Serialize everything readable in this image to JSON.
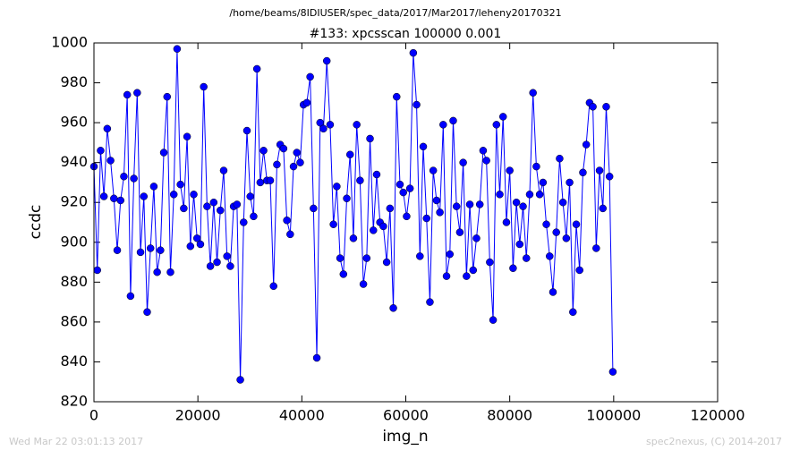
{
  "chart_data": {
    "type": "line",
    "suptitle": "/home/beams/8IDIUSER/spec_data/2017/Mar2017/leheny20170321",
    "title": "#133: xpcsscan 100000 0.001",
    "x_label": "img_n",
    "y_label": "ccdc",
    "footer_left": "Wed Mar 22 03:01:13 2017",
    "footer_right": "spec2nexus, (C) 2014-2017",
    "xlim": [
      0,
      120000
    ],
    "xticks": [
      0,
      20000,
      40000,
      60000,
      80000,
      100000,
      120000
    ],
    "ylim": [
      820,
      1000
    ],
    "yticks": [
      820,
      840,
      860,
      880,
      900,
      920,
      940,
      960,
      980,
      1000
    ],
    "grid": false,
    "series": [
      {
        "name": "ccdc",
        "color": "#0000ff",
        "x": [
          0,
          640,
          1280,
          1920,
          2560,
          3200,
          3840,
          4480,
          5120,
          5760,
          6400,
          7040,
          7680,
          8320,
          8960,
          9600,
          10240,
          10880,
          11520,
          12160,
          12800,
          13440,
          14080,
          14720,
          15360,
          16000,
          16640,
          17280,
          17920,
          18560,
          19200,
          19840,
          20480,
          21120,
          21760,
          22400,
          23040,
          23680,
          24320,
          24960,
          25600,
          26240,
          26880,
          27520,
          28160,
          28800,
          29440,
          30080,
          30720,
          31360,
          32000,
          32640,
          33280,
          33920,
          34560,
          35200,
          35840,
          36480,
          37120,
          37760,
          38400,
          39040,
          39680,
          40320,
          40960,
          41600,
          42240,
          42880,
          43520,
          44160,
          44800,
          45440,
          46080,
          46720,
          47360,
          48000,
          48640,
          49280,
          49920,
          50560,
          51200,
          51840,
          52480,
          53120,
          53760,
          54400,
          55040,
          55680,
          56320,
          56960,
          57600,
          58240,
          58880,
          59520,
          60160,
          60800,
          61440,
          62080,
          62720,
          63360,
          64000,
          64640,
          65280,
          65920,
          66560,
          67200,
          67840,
          68480,
          69120,
          69760,
          70400,
          71040,
          71680,
          72320,
          72960,
          73600,
          74240,
          74880,
          75520,
          76160,
          76800,
          77440,
          78080,
          78720,
          79360,
          80000,
          80640,
          81280,
          81920,
          82560,
          83200,
          83840,
          84480,
          85120,
          85760,
          86400,
          87040,
          87680,
          88320,
          88960,
          89600,
          90240,
          90880,
          91520,
          92160,
          92800,
          93440,
          94080,
          94720,
          95360,
          96000,
          96640,
          97280,
          97920,
          98560,
          99200,
          99840
        ],
        "values": [
          938,
          886,
          946,
          923,
          957,
          941,
          922,
          896,
          921,
          933,
          974,
          873,
          932,
          975,
          895,
          923,
          865,
          897,
          928,
          885,
          896,
          945,
          973,
          885,
          924,
          997,
          929,
          917,
          953,
          898,
          924,
          902,
          899,
          978,
          918,
          888,
          920,
          890,
          916,
          936,
          893,
          888,
          918,
          919,
          831,
          910,
          956,
          923,
          913,
          987,
          930,
          946,
          931,
          931,
          878,
          939,
          949,
          947,
          911,
          904,
          938,
          945,
          940,
          969,
          970,
          983,
          917,
          842,
          960,
          957,
          991,
          959,
          909,
          928,
          892,
          884,
          922,
          944,
          902,
          959,
          931,
          879,
          892,
          952,
          906,
          934,
          910,
          908,
          890,
          917,
          867,
          973,
          929,
          925,
          913,
          927,
          995,
          969,
          893,
          948,
          912,
          870,
          936,
          921,
          915,
          959,
          883,
          894,
          961,
          918,
          905,
          940,
          883,
          919,
          886,
          902,
          919,
          946,
          941,
          890,
          861,
          959,
          924,
          963,
          910,
          936,
          887,
          920,
          899,
          918,
          892,
          924,
          975,
          938,
          924,
          930,
          909,
          893,
          875,
          905,
          942,
          920,
          902,
          930,
          865,
          909,
          886,
          935,
          949,
          970,
          968,
          897,
          936,
          917,
          968,
          933,
          835
        ]
      }
    ]
  }
}
